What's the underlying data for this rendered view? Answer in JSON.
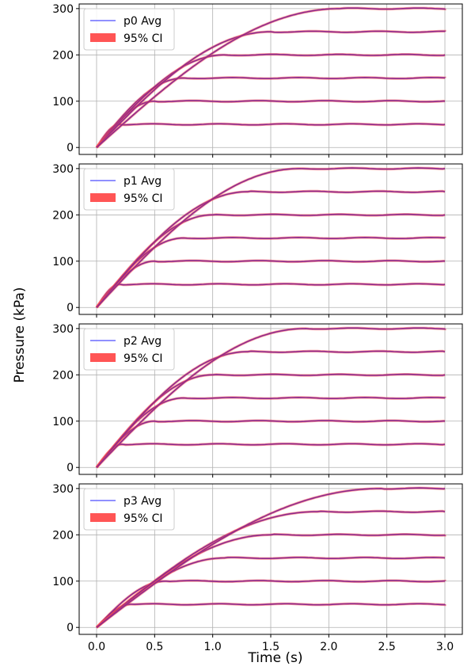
{
  "figure": {
    "ylabel": "Pressure (kPa)",
    "xlabel": "Time (s)",
    "x_ticks": [
      "0.0",
      "0.5",
      "1.0",
      "1.5",
      "2.0",
      "2.5",
      "3.0"
    ],
    "y_ticks": [
      "0",
      "100",
      "200",
      "300"
    ],
    "ci_label": "95% CI",
    "colors": {
      "avg": "#6b6bff",
      "ci": "#ff4c4c",
      "overlap": "#8b2a8f",
      "grid": "#b0b0b0"
    }
  },
  "chart_data": [
    {
      "type": "line",
      "legend_label": "p0 Avg",
      "xlabel": "Time (s)",
      "ylabel": "Pressure (kPa)",
      "xlim": [
        -0.15,
        3.15
      ],
      "ylim": [
        -15,
        310
      ],
      "grid": true,
      "legend_position": "top-left",
      "setpoints": [
        50,
        100,
        150,
        200,
        250,
        300
      ],
      "settle_times": [
        0.2,
        0.5,
        0.75,
        1.1,
        1.5,
        2.1
      ],
      "x": [
        0,
        3.0
      ]
    },
    {
      "type": "line",
      "legend_label": "p1 Avg",
      "xlabel": "Time (s)",
      "ylabel": "Pressure (kPa)",
      "xlim": [
        -0.15,
        3.15
      ],
      "ylim": [
        -15,
        310
      ],
      "grid": true,
      "legend_position": "top-left",
      "setpoints": [
        50,
        100,
        150,
        200,
        250,
        300
      ],
      "settle_times": [
        0.2,
        0.5,
        0.75,
        1.0,
        1.3,
        1.75
      ],
      "x": [
        0,
        3.0
      ]
    },
    {
      "type": "line",
      "legend_label": "p2 Avg",
      "xlabel": "Time (s)",
      "ylabel": "Pressure (kPa)",
      "xlim": [
        -0.15,
        3.15
      ],
      "ylim": [
        -15,
        310
      ],
      "grid": true,
      "legend_position": "top-left",
      "setpoints": [
        50,
        100,
        150,
        200,
        250,
        300
      ],
      "settle_times": [
        0.22,
        0.5,
        0.75,
        1.0,
        1.3,
        1.8
      ],
      "x": [
        0,
        3.0
      ]
    },
    {
      "type": "line",
      "legend_label": "p3 Avg",
      "xlabel": "Time (s)",
      "ylabel": "Pressure (kPa)",
      "xlim": [
        -0.15,
        3.15
      ],
      "ylim": [
        -15,
        310
      ],
      "grid": true,
      "legend_position": "top-left",
      "setpoints": [
        50,
        100,
        150,
        200,
        250,
        300
      ],
      "settle_times": [
        0.3,
        0.6,
        1.1,
        1.5,
        1.9,
        2.45
      ],
      "x": [
        0,
        3.0
      ]
    }
  ]
}
